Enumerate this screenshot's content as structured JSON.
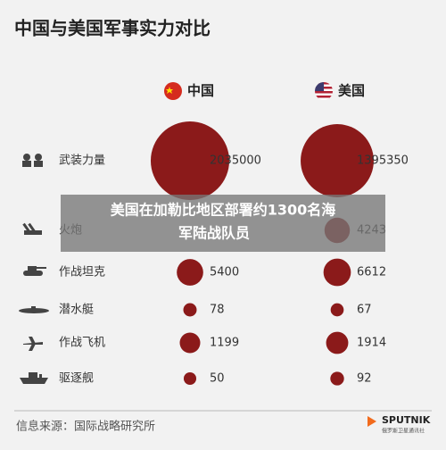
{
  "chart_data": {
    "type": "bubble",
    "title": "中国与美国军事实力对比",
    "categories": [
      "武装力量",
      "火炮",
      "作战坦克",
      "潜水艇",
      "作战飞机",
      "驱逐舰"
    ],
    "series": [
      {
        "name": "中国",
        "color": "#8b1a1a",
        "values": [
          2035000,
          null,
          5400,
          78,
          1199,
          50
        ]
      },
      {
        "name": "美国",
        "color": "#8b1a1a",
        "values": [
          1395350,
          4243,
          6612,
          67,
          1914,
          92
        ]
      }
    ],
    "source": "信息来源：国际战略研究所",
    "overlay": [
      "美国在加勒比地区部署约1300名海",
      "军陆战队员"
    ],
    "logo": {
      "name": "SPUTNIK",
      "subtitle": "俄罗斯卫星通讯社"
    }
  }
}
